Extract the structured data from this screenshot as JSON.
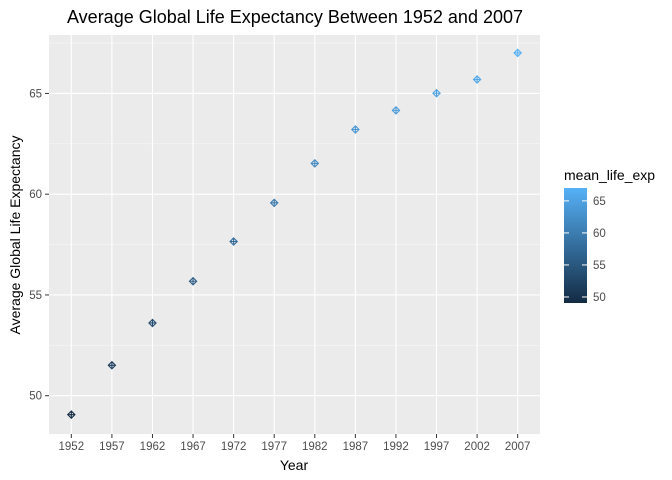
{
  "chart_data": {
    "type": "scatter",
    "title": "Average Global Life Expectancy Between 1952 and 2007",
    "xlabel": "Year",
    "ylabel": "Average Global Life Expectancy",
    "x": [
      1952,
      1957,
      1962,
      1967,
      1972,
      1977,
      1982,
      1987,
      1992,
      1997,
      2002,
      2007
    ],
    "y": [
      49.06,
      51.51,
      53.61,
      55.68,
      57.65,
      59.57,
      61.53,
      63.21,
      64.16,
      65.01,
      65.69,
      67.01
    ],
    "xticks": [
      "1952",
      "1957",
      "1962",
      "1967",
      "1972",
      "1977",
      "1982",
      "1987",
      "1992",
      "1997",
      "2002",
      "2007"
    ],
    "yticks": [
      50,
      55,
      60,
      65
    ],
    "ylim": [
      48.1,
      67.9
    ],
    "grid": true,
    "background": "#ebebeb",
    "legend": {
      "title": "mean_life_exp",
      "position": "right",
      "type": "colorbar",
      "ticks": [
        50,
        55,
        60,
        65
      ],
      "range": [
        49.06,
        67.01
      ],
      "low_color": "#132B43",
      "high_color": "#56B1F7"
    }
  }
}
